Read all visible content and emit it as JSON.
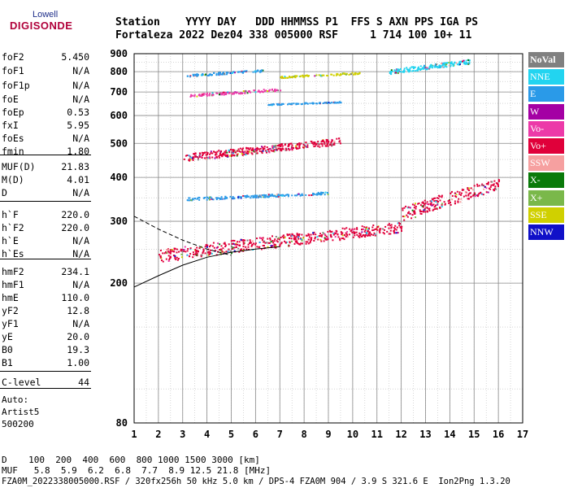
{
  "logo": {
    "top": "Lowell",
    "bottom": "DIGISONDE"
  },
  "header": {
    "line1": "Station    YYYY DAY   DDD HHMMSS P1  FFS S AXN PPS IGA PS",
    "line2": "Fortaleza 2022 Dez04 338 005000 RSF     1 714 100 10+ 11"
  },
  "params": [
    {
      "name": "foF2",
      "value": "5.450"
    },
    {
      "name": "foF1",
      "value": "N/A"
    },
    {
      "name": "foF1p",
      "value": "N/A"
    },
    {
      "name": "foE",
      "value": "N/A"
    },
    {
      "name": "foEp",
      "value": "0.53"
    },
    {
      "name": "fxI",
      "value": "5.95"
    },
    {
      "name": "foEs",
      "value": "N/A"
    },
    {
      "name": "fmin",
      "value": "1.80"
    },
    {
      "name": "MUF(D)",
      "value": "21.83"
    },
    {
      "name": "M(D)",
      "value": "4.01"
    },
    {
      "name": "D",
      "value": "N/A"
    },
    {
      "name": "h`F",
      "value": "220.0"
    },
    {
      "name": "h`F2",
      "value": "220.0"
    },
    {
      "name": "h`E",
      "value": "N/A"
    },
    {
      "name": "h`Es",
      "value": "N/A"
    },
    {
      "name": "hmF2",
      "value": "234.1"
    },
    {
      "name": "hmF1",
      "value": "N/A"
    },
    {
      "name": "hmE",
      "value": "110.0"
    },
    {
      "name": "yF2",
      "value": "12.8"
    },
    {
      "name": "yF1",
      "value": "N/A"
    },
    {
      "name": "yE",
      "value": "20.0"
    },
    {
      "name": "B0",
      "value": "19.3"
    },
    {
      "name": "B1",
      "value": "1.00"
    },
    {
      "name": "C-level",
      "value": "44"
    }
  ],
  "auto": {
    "line1": "Auto:",
    "line2": "Artist5",
    "line3": "500200"
  },
  "legend": [
    {
      "label": "NoVal",
      "color": "#808080"
    },
    {
      "label": "NNE",
      "color": "#22d4f0"
    },
    {
      "label": "E",
      "color": "#2a9ae8"
    },
    {
      "label": "W",
      "color": "#a400a4"
    },
    {
      "label": "Vo-",
      "color": "#ec3aa8"
    },
    {
      "label": "Vo+",
      "color": "#e0003a"
    },
    {
      "label": "SSW",
      "color": "#f6a0a0"
    },
    {
      "label": "X-",
      "color": "#0a7a0a"
    },
    {
      "label": "X+",
      "color": "#7ab84a"
    },
    {
      "label": "SSE",
      "color": "#d0d000"
    },
    {
      "label": "NNW",
      "color": "#1010c8"
    }
  ],
  "footer": {
    "d_line": "D    100  200  400  600  800 1000 1500 3000 [km]",
    "muf_line": "MUF   5.8  5.9  6.2  6.8  7.7  8.9 12.5 21.8 [MHz]",
    "file_line": "FZA0M_2022338005000.RSF / 320fx256h 50 kHz 5.0 km / DPS-4 FZA0M 904 / 3.9 S 321.6 E  Ion2Png 1.3.20"
  },
  "chart_data": {
    "type": "scatter",
    "title": "",
    "xlabel": "",
    "ylabel": "",
    "xlim": [
      1,
      17
    ],
    "ylim": [
      80,
      900
    ],
    "y_scale": "log",
    "x_ticks": [
      1,
      2,
      3,
      4,
      5,
      6,
      7,
      8,
      9,
      10,
      11,
      12,
      13,
      14,
      15,
      16,
      17
    ],
    "y_ticks": [
      80,
      200,
      300,
      400,
      500,
      600,
      700,
      800,
      900
    ],
    "grid": true,
    "legend_position": "right",
    "traces": [
      {
        "name": "E",
        "color": "#2a9ae8",
        "x_range": [
          3.0,
          6.3
        ],
        "y_range": [
          775,
          815
        ]
      },
      {
        "name": "NNE",
        "color": "#22d4f0",
        "x_range": [
          11.5,
          14.8
        ],
        "y_range": [
          790,
          870
        ]
      },
      {
        "name": "SSE",
        "color": "#d0d000",
        "x_range": [
          7.0,
          10.3
        ],
        "y_range": [
          770,
          800
        ]
      },
      {
        "name": "Vo-",
        "color": "#ec3aa8",
        "x_range": [
          3.2,
          7.0
        ],
        "y_range": [
          680,
          720
        ]
      },
      {
        "name": "E",
        "color": "#2a9ae8",
        "x_range": [
          6.5,
          9.5
        ],
        "y_range": [
          645,
          660
        ]
      },
      {
        "name": "E",
        "color": "#2a9ae8",
        "x_range": [
          3.0,
          9.0
        ],
        "y_range": [
          345,
          365
        ]
      },
      {
        "name": "Vo+",
        "color": "#e0003a",
        "x_range": [
          2.0,
          12.0
        ],
        "y_range": [
          230,
          300
        ]
      },
      {
        "name": "Vo+",
        "color": "#e0003a",
        "x_range": [
          12.0,
          16.0
        ],
        "y_range": [
          300,
          400
        ]
      },
      {
        "name": "Vo+",
        "color": "#e0003a",
        "x_range": [
          3.0,
          9.5
        ],
        "y_range": [
          445,
          520
        ]
      }
    ],
    "model_curves": [
      {
        "style": "solid",
        "x": [
          1.0,
          2.0,
          3.0,
          4.0,
          5.0,
          6.0,
          7.0
        ],
        "y": [
          195,
          210,
          225,
          237,
          245,
          250,
          254
        ]
      },
      {
        "style": "dashed",
        "x": [
          1.0,
          2.0,
          3.0,
          4.0,
          5.0
        ],
        "y": [
          310,
          285,
          265,
          250,
          240
        ]
      }
    ]
  }
}
